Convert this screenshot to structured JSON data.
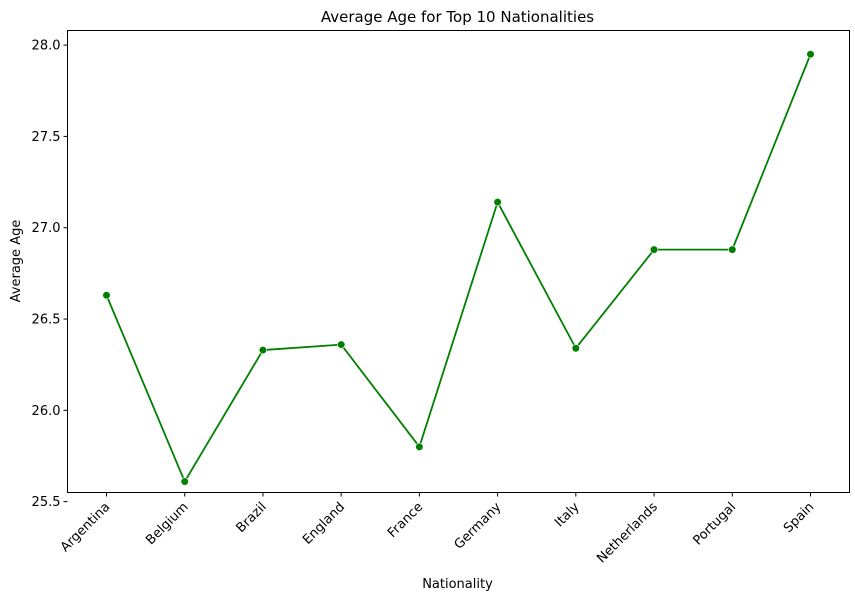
{
  "chart_data": {
    "type": "line",
    "title": "Average Age for Top 10 Nationalities",
    "xlabel": "Nationality",
    "ylabel": "Average Age",
    "categories": [
      "Argentina",
      "Belgium",
      "Brazil",
      "England",
      "France",
      "Germany",
      "Italy",
      "Netherlands",
      "Portugal",
      "Spain"
    ],
    "series": [
      {
        "values": [
          26.63,
          25.61,
          26.33,
          26.36,
          25.8,
          27.14,
          26.34,
          26.88,
          26.88,
          27.95
        ],
        "color": "#008000",
        "marker": "circle"
      }
    ],
    "ylim": [
      25.55,
      28.08
    ],
    "yticks": [
      25.5,
      26.0,
      26.5,
      27.0,
      27.5,
      28.0
    ],
    "ytick_labels": [
      "25.5",
      "26.0",
      "26.5",
      "27.0",
      "27.5",
      "28.0"
    ],
    "xtick_rotation": 45,
    "grid": false,
    "legend": false
  }
}
